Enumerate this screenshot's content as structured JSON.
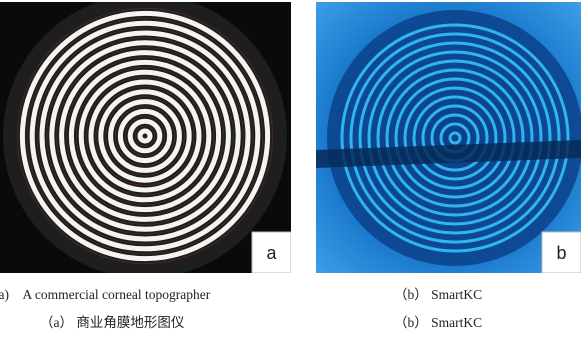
{
  "panels": [
    {
      "badge": "a",
      "caption_en": "(a) A commercial corneal topographer",
      "caption_zh": "（a） 商业角膜地形图仪"
    },
    {
      "badge": "b",
      "caption_en": "（b） SmartKC",
      "caption_zh": "（b） SmartKC"
    }
  ]
}
